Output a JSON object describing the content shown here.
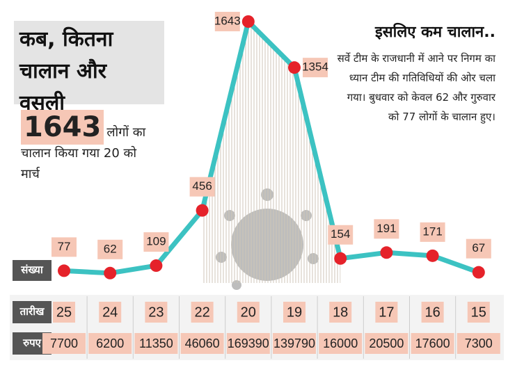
{
  "chart_data": {
    "type": "line",
    "title": "कब, कितना चालान और वसूली",
    "highlight": {
      "value": 1643,
      "text": "लोगों का चालान किया गया 20 को मार्च"
    },
    "annotation_title": "इसलिए कम चालान..",
    "annotation": "सर्वे टीम के राजधानी में आने पर निगम का ध्यान टीम की गतिविधियों की ओर चला गया। बुधवार को केवल 62 और गुरुवार को 77 लोगों के चालान हुए।",
    "row_labels": {
      "count": "संख्या",
      "date": "तारीख",
      "amount": "रुपए"
    },
    "categories": [
      "25",
      "24",
      "23",
      "22",
      "20",
      "19",
      "18",
      "17",
      "16",
      "15"
    ],
    "values": [
      77,
      62,
      109,
      456,
      1643,
      1354,
      154,
      191,
      171,
      67
    ],
    "amounts": [
      7700,
      6200,
      11350,
      46060,
      169390,
      139790,
      16000,
      20500,
      17600,
      7300
    ],
    "line_color": "#3cc2c2",
    "marker_color": "#e5222a",
    "label_color": "#f6c7b6"
  }
}
